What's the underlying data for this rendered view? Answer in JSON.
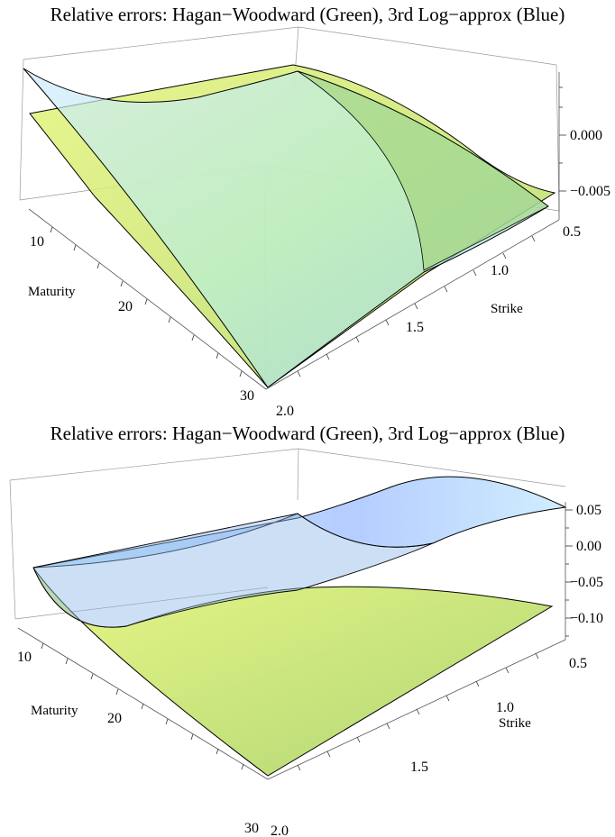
{
  "chart_data": [
    {
      "type": "surface3d",
      "title": "Relative errors: Hagan−Woodward (Green), 3rd Log−approx (Blue)",
      "xlabel": "Maturity",
      "ylabel": "Strike",
      "zlabel": "",
      "x_ticks": [
        "10",
        "20",
        "30"
      ],
      "y_ticks": [
        "0.5",
        "1.0",
        "1.5",
        "2.0"
      ],
      "z_ticks": [
        "0.000",
        "−0.005"
      ],
      "series": [
        {
          "name": "Hagan−Woodward (Green)",
          "color": "#b9e35c",
          "corners": {
            "maturity_min_strike_min": 0.0001,
            "maturity_min_strike_max": 0.0005,
            "maturity_max_strike_min": -0.0045,
            "maturity_max_strike_max": -0.011
          }
        },
        {
          "name": "3rd Log−approx (Blue)",
          "color": "#8fd0ff",
          "corners": {
            "maturity_min_strike_min": 0.0028,
            "maturity_min_strike_max": 0.0021,
            "maturity_max_strike_min": -0.0062,
            "maturity_max_strike_max": -0.011
          }
        }
      ]
    },
    {
      "type": "surface3d",
      "title": "Relative errors: Hagan−Woodward (Green), 3rd Log−approx (Blue)",
      "xlabel": "Maturity",
      "ylabel": "Strike",
      "zlabel": "",
      "x_ticks": [
        "10",
        "20",
        "30"
      ],
      "y_ticks": [
        "0.5",
        "1.0",
        "1.5",
        "2.0"
      ],
      "z_ticks": [
        "0.05",
        "0.00",
        "−0.05",
        "−0.10"
      ],
      "series": [
        {
          "name": "Hagan−Woodward (Green)",
          "color": "#b9e35c",
          "corners": {
            "maturity_min_strike_min": -0.05,
            "maturity_min_strike_max": -0.06,
            "maturity_max_strike_min": -0.05,
            "maturity_max_strike_max": -0.15
          }
        },
        {
          "name": "3rd Log−approx (Blue)",
          "color": "#8fa8ff",
          "corners": {
            "maturity_min_strike_min": 0.06,
            "maturity_min_strike_max": -0.02,
            "maturity_max_strike_min": 0.06,
            "maturity_max_strike_max": -0.01
          }
        }
      ]
    }
  ]
}
